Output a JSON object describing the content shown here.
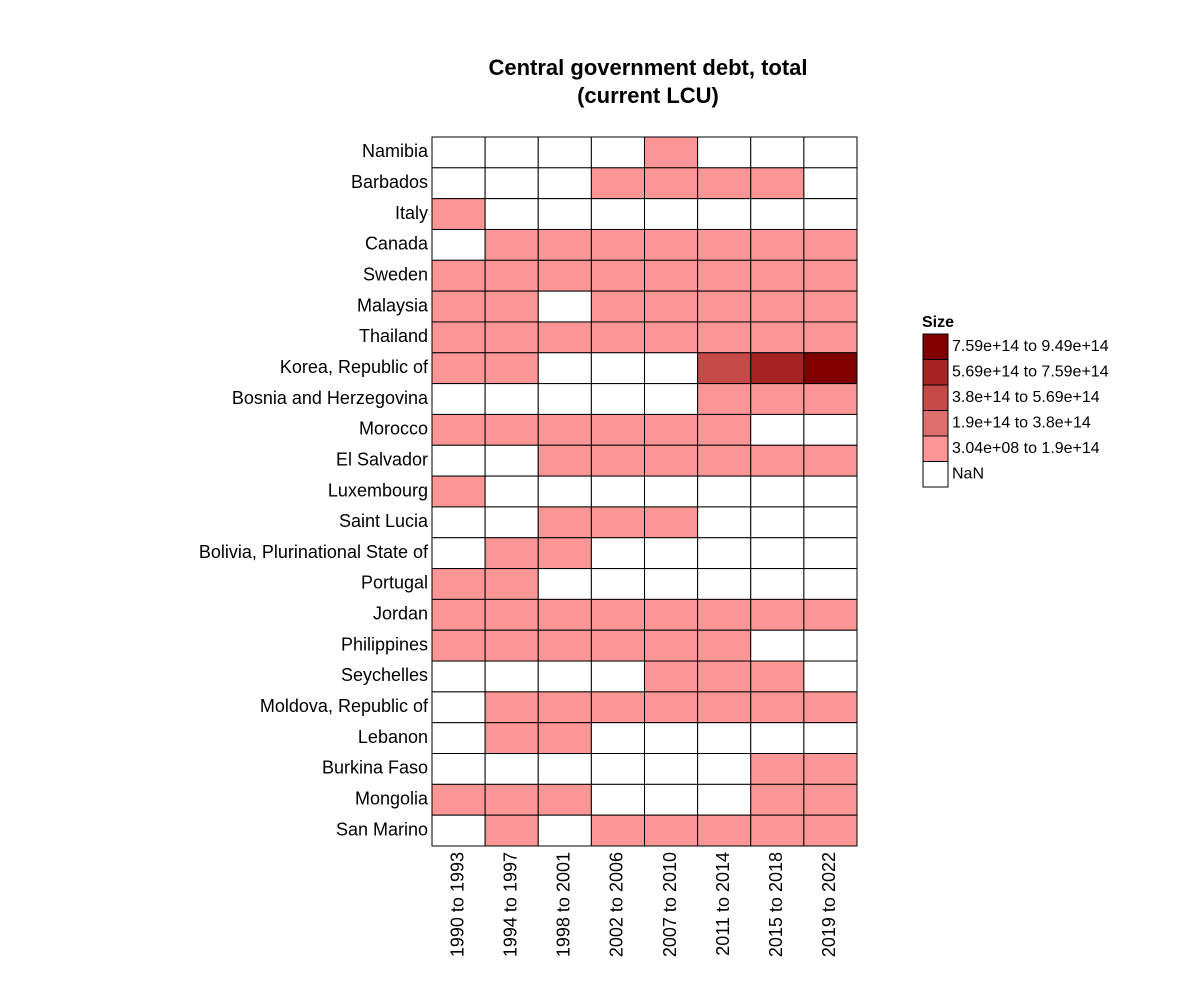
{
  "chart_data": {
    "type": "heatmap",
    "title": [
      "Central government debt, total",
      "(current LCU)"
    ],
    "legend_title": "Size",
    "legend": [
      {
        "label": "7.59e+14  to  9.49e+14",
        "color": "#800000",
        "range": [
          759000000000000.0,
          949000000000000.0
        ]
      },
      {
        "label": "5.69e+14  to  7.59e+14",
        "color": "#a42424",
        "range": [
          569000000000000.0,
          759000000000000.0
        ]
      },
      {
        "label": "3.8e+14  to  5.69e+14",
        "color": "#c44a48",
        "range": [
          380000000000000.0,
          569000000000000.0
        ]
      },
      {
        "label": "1.9e+14  to  3.8e+14",
        "color": "#dc6e6e",
        "range": [
          190000000000000.0,
          380000000000000.0
        ]
      },
      {
        "label": "3.04e+08  to  1.9e+14",
        "color": "#fc9696",
        "range": [
          304000000.0,
          190000000000000.0
        ]
      },
      {
        "label": "NaN",
        "color": "#ffffff"
      }
    ],
    "categories": [
      "1990 to 1993",
      "1994 to 1997",
      "1998 to 2001",
      "2002 to 2006",
      "2007 to 2010",
      "2011 to 2014",
      "2015 to 2018",
      "2019 to 2022"
    ],
    "series": [
      {
        "name": "Namibia",
        "values": [
          null,
          null,
          null,
          null,
          20000000000.0,
          null,
          null,
          null
        ]
      },
      {
        "name": "Barbados",
        "values": [
          null,
          null,
          null,
          4000000000.0,
          6000000000.0,
          9000000000.0,
          12000000000.0,
          null
        ]
      },
      {
        "name": "Italy",
        "values": [
          150000000000000.0,
          null,
          null,
          null,
          null,
          null,
          null,
          null
        ]
      },
      {
        "name": "Canada",
        "values": [
          null,
          500000000000.0,
          550000000000.0,
          500000000000.0,
          600000000000.0,
          800000000000.0,
          900000000000.0,
          1300000000000.0
        ]
      },
      {
        "name": "Sweden",
        "values": [
          600000000000.0,
          1300000000000.0,
          1300000000000.0,
          1200000000000.0,
          1100000000000.0,
          1100000000000.0,
          1300000000000.0,
          1200000000000.0
        ]
      },
      {
        "name": "Malaysia",
        "values": [
          70000000000.0,
          70000000000.0,
          null,
          150000000000.0,
          250000000000.0,
          450000000000.0,
          600000000000.0,
          900000000000.0
        ]
      },
      {
        "name": "Thailand",
        "values": [
          200000000000.0,
          150000000000.0,
          1500000000000.0,
          2500000000000.0,
          3000000000000.0,
          4000000000000.0,
          5000000000000.0,
          7000000000000.0
        ]
      },
      {
        "name": "Korea, Republic of",
        "values": [
          30000000000000.0,
          50000000000000.0,
          null,
          null,
          null,
          460000000000000.0,
          650000000000000.0,
          949000000000000.0
        ]
      },
      {
        "name": "Bosnia and Herzegovina",
        "values": [
          null,
          null,
          null,
          null,
          null,
          8000000000.0,
          9000000000.0,
          10000000000.0
        ]
      },
      {
        "name": "Morocco",
        "values": [
          150000000000.0,
          190000000000.0,
          230000000000.0,
          300000000000.0,
          350000000000.0,
          500000000000.0,
          null,
          null
        ]
      },
      {
        "name": "El Salvador",
        "values": [
          null,
          null,
          3000000000.0,
          7000000000.0,
          9000000000.0,
          12000000000.0,
          15000000000.0,
          19000000000.0
        ]
      },
      {
        "name": "Luxembourg",
        "values": [
          1000000000.0,
          null,
          null,
          null,
          null,
          null,
          null,
          null
        ]
      },
      {
        "name": "Saint Lucia",
        "values": [
          null,
          null,
          304000000.0,
          600000000.0,
          800000000.0,
          null,
          null,
          null
        ]
      },
      {
        "name": "Bolivia, Plurinational State of",
        "values": [
          null,
          15000000000.0,
          18000000000.0,
          null,
          null,
          null,
          null,
          null
        ]
      },
      {
        "name": "Portugal",
        "values": [
          30000000000000.0,
          45000000000000.0,
          null,
          null,
          null,
          null,
          null,
          null
        ]
      },
      {
        "name": "Jordan",
        "values": [
          3000000000.0,
          3500000000.0,
          4000000000.0,
          5000000000.0,
          8000000000.0,
          15000000000.0,
          25000000000.0,
          30000000000.0
        ]
      },
      {
        "name": "Philippines",
        "values": [
          800000000000.0,
          1000000000000.0,
          1800000000000.0,
          3500000000000.0,
          4200000000000.0,
          5000000000000.0,
          null,
          null
        ]
      },
      {
        "name": "Seychelles",
        "values": [
          null,
          null,
          null,
          null,
          5000000000.0,
          6000000000.0,
          6000000000.0,
          null
        ]
      },
      {
        "name": "Moldova, Republic of",
        "values": [
          null,
          2000000000.0,
          6000000000.0,
          7000000000.0,
          10000000000.0,
          20000000000.0,
          35000000000.0,
          60000000000.0
        ]
      },
      {
        "name": "Lebanon",
        "values": [
          null,
          15000000000000.0,
          30000000000000.0,
          null,
          null,
          null,
          null,
          null
        ]
      },
      {
        "name": "Burkina Faso",
        "values": [
          null,
          null,
          null,
          null,
          null,
          null,
          3000000000000.0,
          5000000000000.0
        ]
      },
      {
        "name": "Mongolia",
        "values": [
          10000000000.0,
          150000000000.0,
          400000000000.0,
          null,
          null,
          null,
          15000000000000.0,
          25000000000000.0
        ]
      },
      {
        "name": "San Marino",
        "values": [
          null,
          500000000.0,
          null,
          400000000.0,
          500000000.0,
          700000000.0,
          1000000000.0,
          1200000000.0
        ]
      }
    ]
  }
}
